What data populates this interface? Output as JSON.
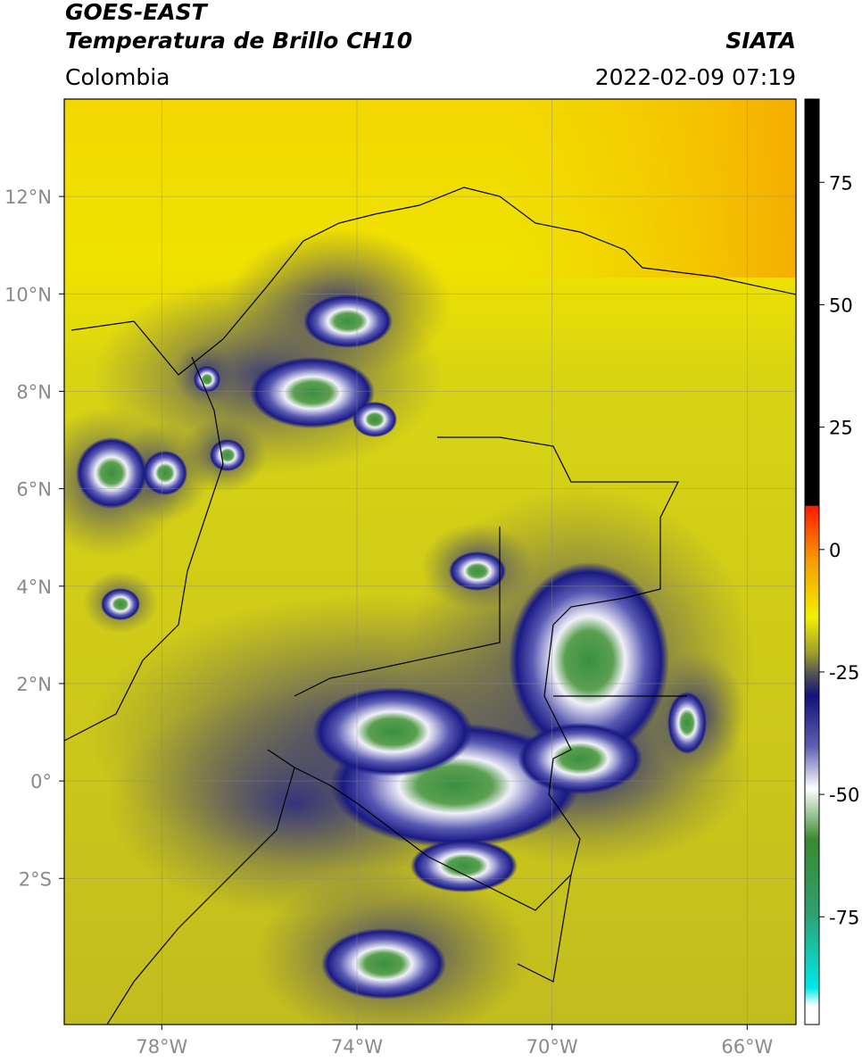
{
  "header": {
    "title": "GOES-EAST",
    "subtitle": "Temperatura de Brillo CH10",
    "source": "SIATA",
    "region": "Colombia",
    "timestamp": "2022-02-09 07:19"
  },
  "map": {
    "xlim": [
      -80,
      -65
    ],
    "ylim": [
      -5,
      14
    ],
    "xticks": [
      {
        "value": -78,
        "label": "78°W"
      },
      {
        "value": -74,
        "label": "74°W"
      },
      {
        "value": -70,
        "label": "70°W"
      },
      {
        "value": -66,
        "label": "66°W"
      }
    ],
    "yticks": [
      {
        "value": 12,
        "label": "12°N"
      },
      {
        "value": 10,
        "label": "10°N"
      },
      {
        "value": 8,
        "label": "8°N"
      },
      {
        "value": 6,
        "label": "6°N"
      },
      {
        "value": 4,
        "label": "4°N"
      },
      {
        "value": 2,
        "label": "2°N"
      },
      {
        "value": 0,
        "label": "0°"
      },
      {
        "value": -2,
        "label": "2°S"
      }
    ]
  },
  "colorbar": {
    "lim": [
      -97,
      92
    ],
    "ticks": [
      75,
      50,
      25,
      0,
      -25,
      -50,
      -75
    ]
  }
}
